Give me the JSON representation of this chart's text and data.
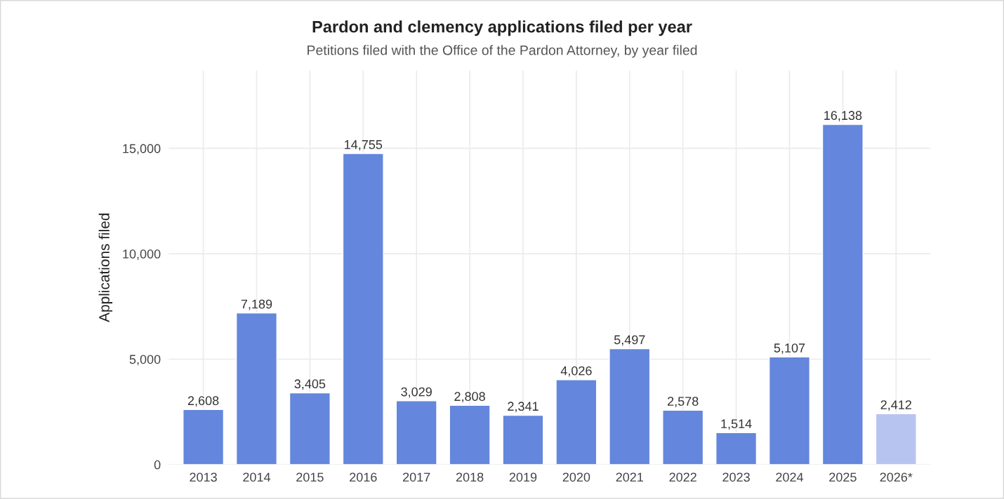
{
  "chart_data": {
    "type": "bar",
    "title": "Pardon and clemency applications filed per year",
    "subtitle": "Petitions filed with the Office of the Pardon Attorney, by year filed",
    "ylabel": "Applications filed",
    "categories": [
      "2013",
      "2014",
      "2015",
      "2016",
      "2017",
      "2018",
      "2019",
      "2020",
      "2021",
      "2022",
      "2023",
      "2024",
      "2025",
      "2026*"
    ],
    "values": [
      2608,
      7189,
      3405,
      14755,
      3029,
      2808,
      2341,
      4026,
      5497,
      2578,
      1514,
      5107,
      16138,
      2412
    ],
    "colors": [
      "#6486dc",
      "#6486dc",
      "#6486dc",
      "#6486dc",
      "#6486dc",
      "#6486dc",
      "#6486dc",
      "#6486dc",
      "#6486dc",
      "#6486dc",
      "#6486dc",
      "#6486dc",
      "#6486dc",
      "#b8c4f0"
    ],
    "value_labels": [
      "2,608",
      "7,189",
      "3,405",
      "14,755",
      "3,029",
      "2,808",
      "2,341",
      "4,026",
      "5,497",
      "2,578",
      "1,514",
      "5,107",
      "16,138",
      "2,412"
    ],
    "ylim": [
      0,
      18700
    ],
    "yticks": [
      0,
      {
        "value": 5000,
        "label": "5,000"
      },
      {
        "value": 10000,
        "label": "10,000"
      },
      {
        "value": 15000,
        "label": "15,000"
      }
    ],
    "grid": true
  }
}
